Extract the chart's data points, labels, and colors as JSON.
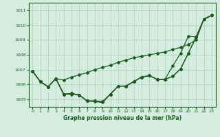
{
  "title": "Graphe pression niveau de la mer (hPa)",
  "bg_color": "#d4ede0",
  "grid_color": "#aacfbe",
  "line_color": "#1a5c1a",
  "xlim": [
    -0.5,
    23.5
  ],
  "ylim": [
    1004.5,
    1011.5
  ],
  "yticks": [
    1005,
    1006,
    1007,
    1008,
    1009,
    1010,
    1011
  ],
  "xticks": [
    0,
    1,
    2,
    3,
    4,
    5,
    6,
    7,
    8,
    9,
    10,
    11,
    12,
    13,
    14,
    15,
    16,
    17,
    18,
    19,
    20,
    21,
    22,
    23
  ],
  "seriesA": [
    1006.9,
    1006.2,
    1005.85,
    1006.4,
    1006.3,
    1006.5,
    1006.65,
    1006.8,
    1007.0,
    1007.15,
    1007.3,
    1007.5,
    1007.65,
    1007.8,
    1007.9,
    1008.0,
    1008.1,
    1008.2,
    1008.35,
    1008.5,
    1008.7,
    1009.0,
    1010.4,
    1010.65
  ],
  "seriesB": [
    1006.9,
    1006.2,
    1005.85,
    1006.4,
    1005.35,
    1005.4,
    1005.3,
    1004.9,
    1004.9,
    1004.85,
    1005.35,
    1005.9,
    1005.9,
    1006.2,
    1006.5,
    1006.6,
    1006.35,
    1006.35,
    1006.55,
    1007.05,
    1008.1,
    1009.2,
    1010.4,
    1010.65
  ],
  "seriesC": [
    1006.9,
    1006.2,
    1005.85,
    1006.4,
    1005.35,
    1005.4,
    1005.3,
    1004.9,
    1004.9,
    1004.85,
    1005.35,
    1005.9,
    1005.9,
    1006.2,
    1006.5,
    1006.6,
    1006.35,
    1006.35,
    1007.25,
    1008.1,
    1009.25,
    1009.2,
    1010.4,
    1010.65
  ],
  "seriesD": [
    1006.9,
    1006.2,
    1005.85,
    1006.4,
    1005.35,
    1005.35,
    1005.3,
    1004.9,
    1004.85,
    1004.8,
    1005.35,
    1005.9,
    1005.9,
    1006.2,
    1006.5,
    1006.6,
    1006.35,
    1006.35,
    1006.55,
    1007.05,
    1008.1,
    1009.2,
    1010.4,
    1010.65
  ]
}
